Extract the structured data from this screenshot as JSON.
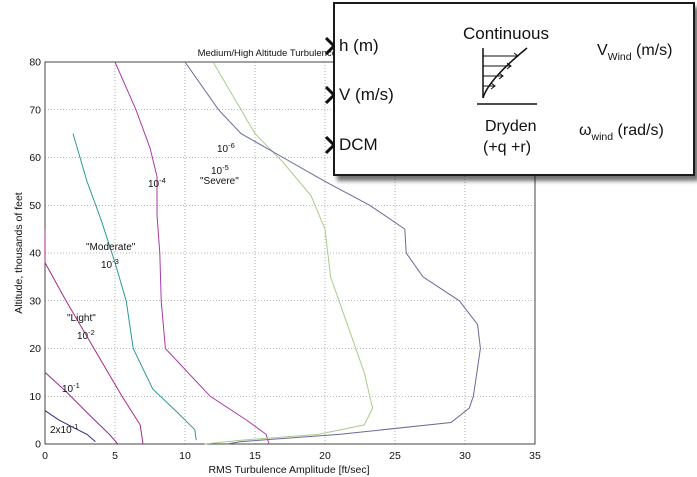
{
  "chart_data": {
    "type": "line",
    "title": "Medium/High Altitude Turbulence Intensities",
    "xlabel": "RMS Turbulence Amplitude [ft/sec]",
    "ylabel": "Altitude, thousands of feet",
    "xlim": [
      0,
      35
    ],
    "ylim": [
      0,
      80
    ],
    "xticks": [
      "0",
      "5",
      "10",
      "15",
      "20",
      "25",
      "30",
      "35"
    ],
    "yticks": [
      "0",
      "10",
      "20",
      "30",
      "40",
      "50",
      "60",
      "70",
      "80"
    ],
    "grid": true,
    "series": [
      {
        "name": "2x10⁻¹",
        "color": "#2a2a88",
        "points": [
          [
            0.0,
            7.0
          ],
          [
            1.0,
            5.0
          ],
          [
            2.0,
            3.5
          ],
          [
            3.0,
            2.0
          ],
          [
            3.6,
            0.5
          ]
        ]
      },
      {
        "name": "10⁻¹",
        "color": "#9a2a9a",
        "points": [
          [
            0.0,
            15.0
          ],
          [
            1.5,
            11.0
          ],
          [
            3.2,
            6.0
          ],
          [
            4.6,
            2.0
          ],
          [
            5.2,
            0.0
          ]
        ]
      },
      {
        "name": "10⁻²",
        "color": "#aa2a8a",
        "points": [
          [
            0.0,
            45.0
          ],
          [
            0.0,
            38.0
          ],
          [
            1.5,
            30.0
          ],
          [
            3.5,
            20.0
          ],
          [
            5.5,
            10.0
          ],
          [
            6.8,
            4.0
          ],
          [
            7.0,
            0.0
          ]
        ]
      },
      {
        "name": "10⁻³",
        "color": "#2a9a9a",
        "points": [
          [
            2.0,
            65.0
          ],
          [
            3.0,
            55.0
          ],
          [
            4.0,
            47.0
          ],
          [
            5.0,
            38.0
          ],
          [
            5.8,
            30.0
          ],
          [
            6.3,
            20.0
          ],
          [
            7.7,
            11.5
          ],
          [
            9.5,
            6.5
          ],
          [
            10.7,
            3.0
          ],
          [
            10.8,
            0.8
          ]
        ]
      },
      {
        "name": "10⁻⁴",
        "color": "#aa3aaa",
        "points": [
          [
            5.0,
            80.0
          ],
          [
            6.5,
            70.0
          ],
          [
            7.5,
            62.0
          ],
          [
            8.0,
            56.0
          ],
          [
            8.0,
            48.0
          ],
          [
            8.2,
            40.0
          ],
          [
            8.3,
            30.0
          ],
          [
            8.6,
            20.0
          ],
          [
            11.8,
            10.0
          ],
          [
            14.4,
            5.0
          ],
          [
            15.8,
            2.0
          ],
          [
            16.0,
            0.0
          ]
        ]
      },
      {
        "name": "10⁻⁵",
        "color": "#aacc88",
        "points": [
          [
            12.0,
            80.0
          ],
          [
            13.0,
            75.0
          ],
          [
            15.0,
            65.0
          ],
          [
            17.0,
            59.0
          ],
          [
            19.0,
            52.0
          ],
          [
            20.0,
            45.0
          ],
          [
            20.4,
            35.0
          ],
          [
            21.6,
            25.0
          ],
          [
            22.8,
            15.0
          ],
          [
            23.4,
            7.5
          ],
          [
            22.8,
            4.0
          ],
          [
            19.5,
            2.0
          ],
          [
            14.0,
            0.8
          ],
          [
            11.4,
            0.0
          ]
        ]
      },
      {
        "name": "10⁻⁶",
        "color": "#6a6a9a",
        "points": [
          [
            10.0,
            80.0
          ],
          [
            12.4,
            70.0
          ],
          [
            14.0,
            65.0
          ],
          [
            17.0,
            60.0
          ],
          [
            20.0,
            55.0
          ],
          [
            23.2,
            50.0
          ],
          [
            25.7,
            45.0
          ],
          [
            25.8,
            40.0
          ],
          [
            27.0,
            35.0
          ],
          [
            29.6,
            30.0
          ],
          [
            30.9,
            25.0
          ],
          [
            31.1,
            20.0
          ],
          [
            30.6,
            10.0
          ],
          [
            30.3,
            7.5
          ],
          [
            29.0,
            4.5
          ],
          [
            21.0,
            2.0
          ],
          [
            14.0,
            0.5
          ],
          [
            13.0,
            0.0
          ]
        ]
      }
    ],
    "annotations": {
      "severe": "\"Severe\"",
      "moderate": "\"Moderate\"",
      "light": "\"Light\"",
      "e6": {
        "base": "10",
        "exp": "-6"
      },
      "e5": {
        "base": "10",
        "exp": "-5"
      },
      "e4": {
        "base": "10",
        "exp": "-4"
      },
      "e3": {
        "base": "10",
        "exp": "-3"
      },
      "e2": {
        "base": "10",
        "exp": "-2"
      },
      "e1": {
        "base": "10",
        "exp": "-1"
      },
      "e0": {
        "base": "2x10",
        "exp": "-1"
      }
    }
  },
  "block": {
    "inputs": [
      "h (m)",
      "V (m/s)",
      "DCM"
    ],
    "title": "Continuous",
    "name_line1": "Dryden",
    "name_line2": "(+q +r)",
    "out1_main": "V",
    "out1_sub": "Wind",
    "out1_unit": " (m/s)",
    "out2_main": "ω",
    "out2_sub": "wind",
    "out2_unit": " (rad/s)"
  }
}
